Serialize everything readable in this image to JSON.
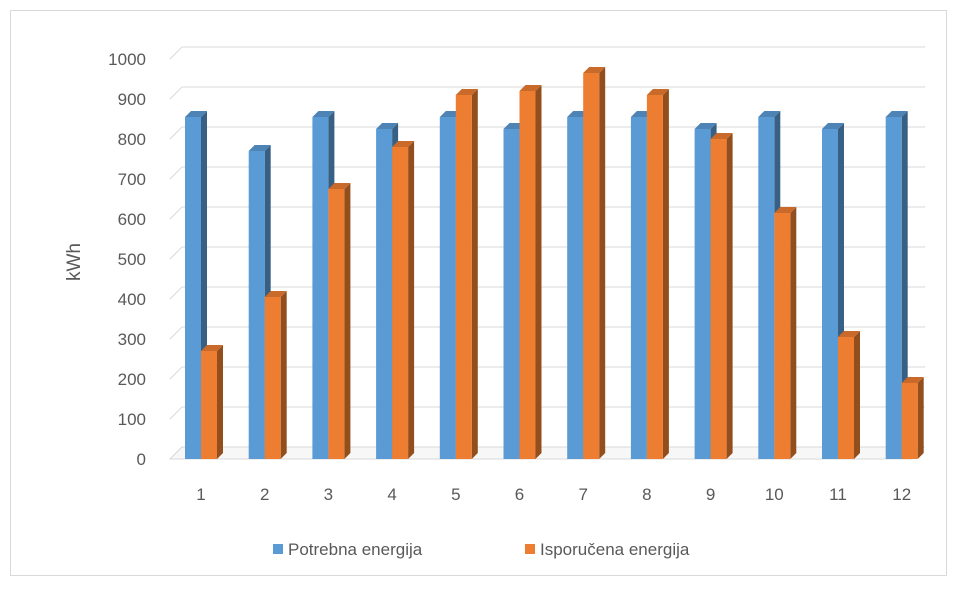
{
  "chart_data": {
    "type": "bar",
    "style": "3d-clustered-column",
    "categories": [
      "1",
      "2",
      "3",
      "4",
      "5",
      "6",
      "7",
      "8",
      "9",
      "10",
      "11",
      "12"
    ],
    "series": [
      {
        "name": "Potrebna energija",
        "color": "#5B9BD5",
        "values": [
          855,
          770,
          855,
          825,
          855,
          825,
          855,
          855,
          825,
          855,
          825,
          855
        ]
      },
      {
        "name": "Isporučena energija",
        "color": "#ED7D31",
        "values": [
          270,
          405,
          675,
          780,
          910,
          920,
          965,
          910,
          800,
          615,
          305,
          190
        ]
      }
    ],
    "ylabel": "kWh",
    "xlabel": "",
    "ylim": [
      0,
      1000
    ],
    "yticks": [
      "0",
      "100",
      "200",
      "300",
      "400",
      "500",
      "600",
      "700",
      "800",
      "900",
      "1000"
    ],
    "grid": true,
    "legend": "bottom"
  }
}
